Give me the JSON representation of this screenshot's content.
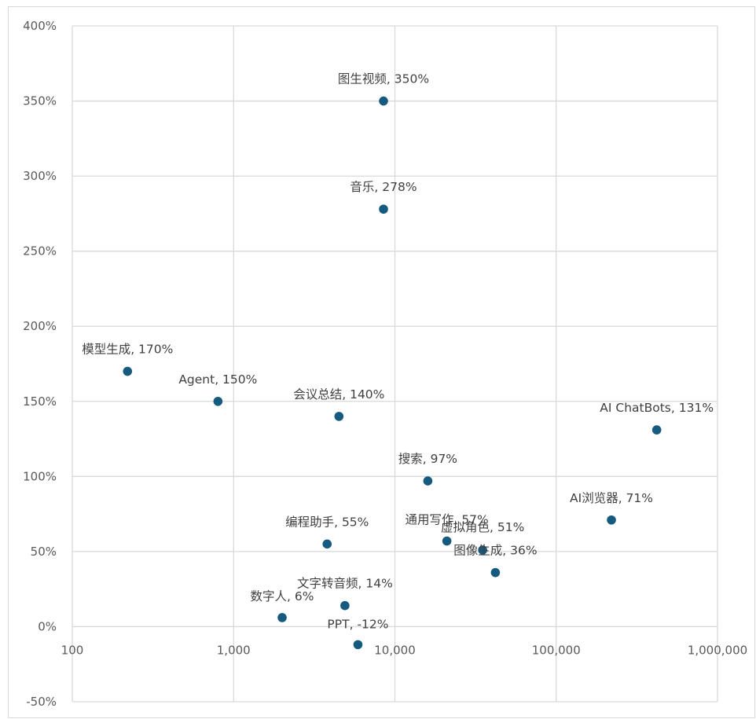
{
  "chart_data": {
    "type": "scatter",
    "x_scale": "log",
    "xlim": [
      100,
      1000000
    ],
    "ylim": [
      -0.5,
      4.0
    ],
    "grid": true,
    "x_ticks": [
      "100",
      "1,000",
      "10,000",
      "100,000",
      "1,000,000"
    ],
    "y_ticks": [
      "400%",
      "350%",
      "300%",
      "250%",
      "200%",
      "150%",
      "100%",
      "50%",
      "0%",
      "-50%"
    ],
    "points": [
      {
        "label": "图生视频, 350%",
        "x": 8500,
        "y": 3.5
      },
      {
        "label": "音乐, 278%",
        "x": 8500,
        "y": 2.78
      },
      {
        "label": "模型生成, 170%",
        "x": 220,
        "y": 1.7
      },
      {
        "label": "Agent, 150%",
        "x": 800,
        "y": 1.5
      },
      {
        "label": "会议总结, 140%",
        "x": 4500,
        "y": 1.4
      },
      {
        "label": "AI ChatBots, 131%",
        "x": 420000,
        "y": 1.31
      },
      {
        "label": "搜索, 97%",
        "x": 16000,
        "y": 0.97
      },
      {
        "label": "AI浏览器, 71%",
        "x": 220000,
        "y": 0.71
      },
      {
        "label": "编程助手, 55%",
        "x": 3800,
        "y": 0.55
      },
      {
        "label": "通用写作, 57%",
        "x": 21000,
        "y": 0.57
      },
      {
        "label": "虚拟角色, 51%",
        "x": 35000,
        "y": 0.51
      },
      {
        "label": "图像生成, 36%",
        "x": 42000,
        "y": 0.36
      },
      {
        "label": "文字转音频, 14%",
        "x": 4900,
        "y": 0.14
      },
      {
        "label": "数字人, 6%",
        "x": 2000,
        "y": 0.06
      },
      {
        "label": "PPT, -12%",
        "x": 5900,
        "y": -0.12
      }
    ]
  }
}
